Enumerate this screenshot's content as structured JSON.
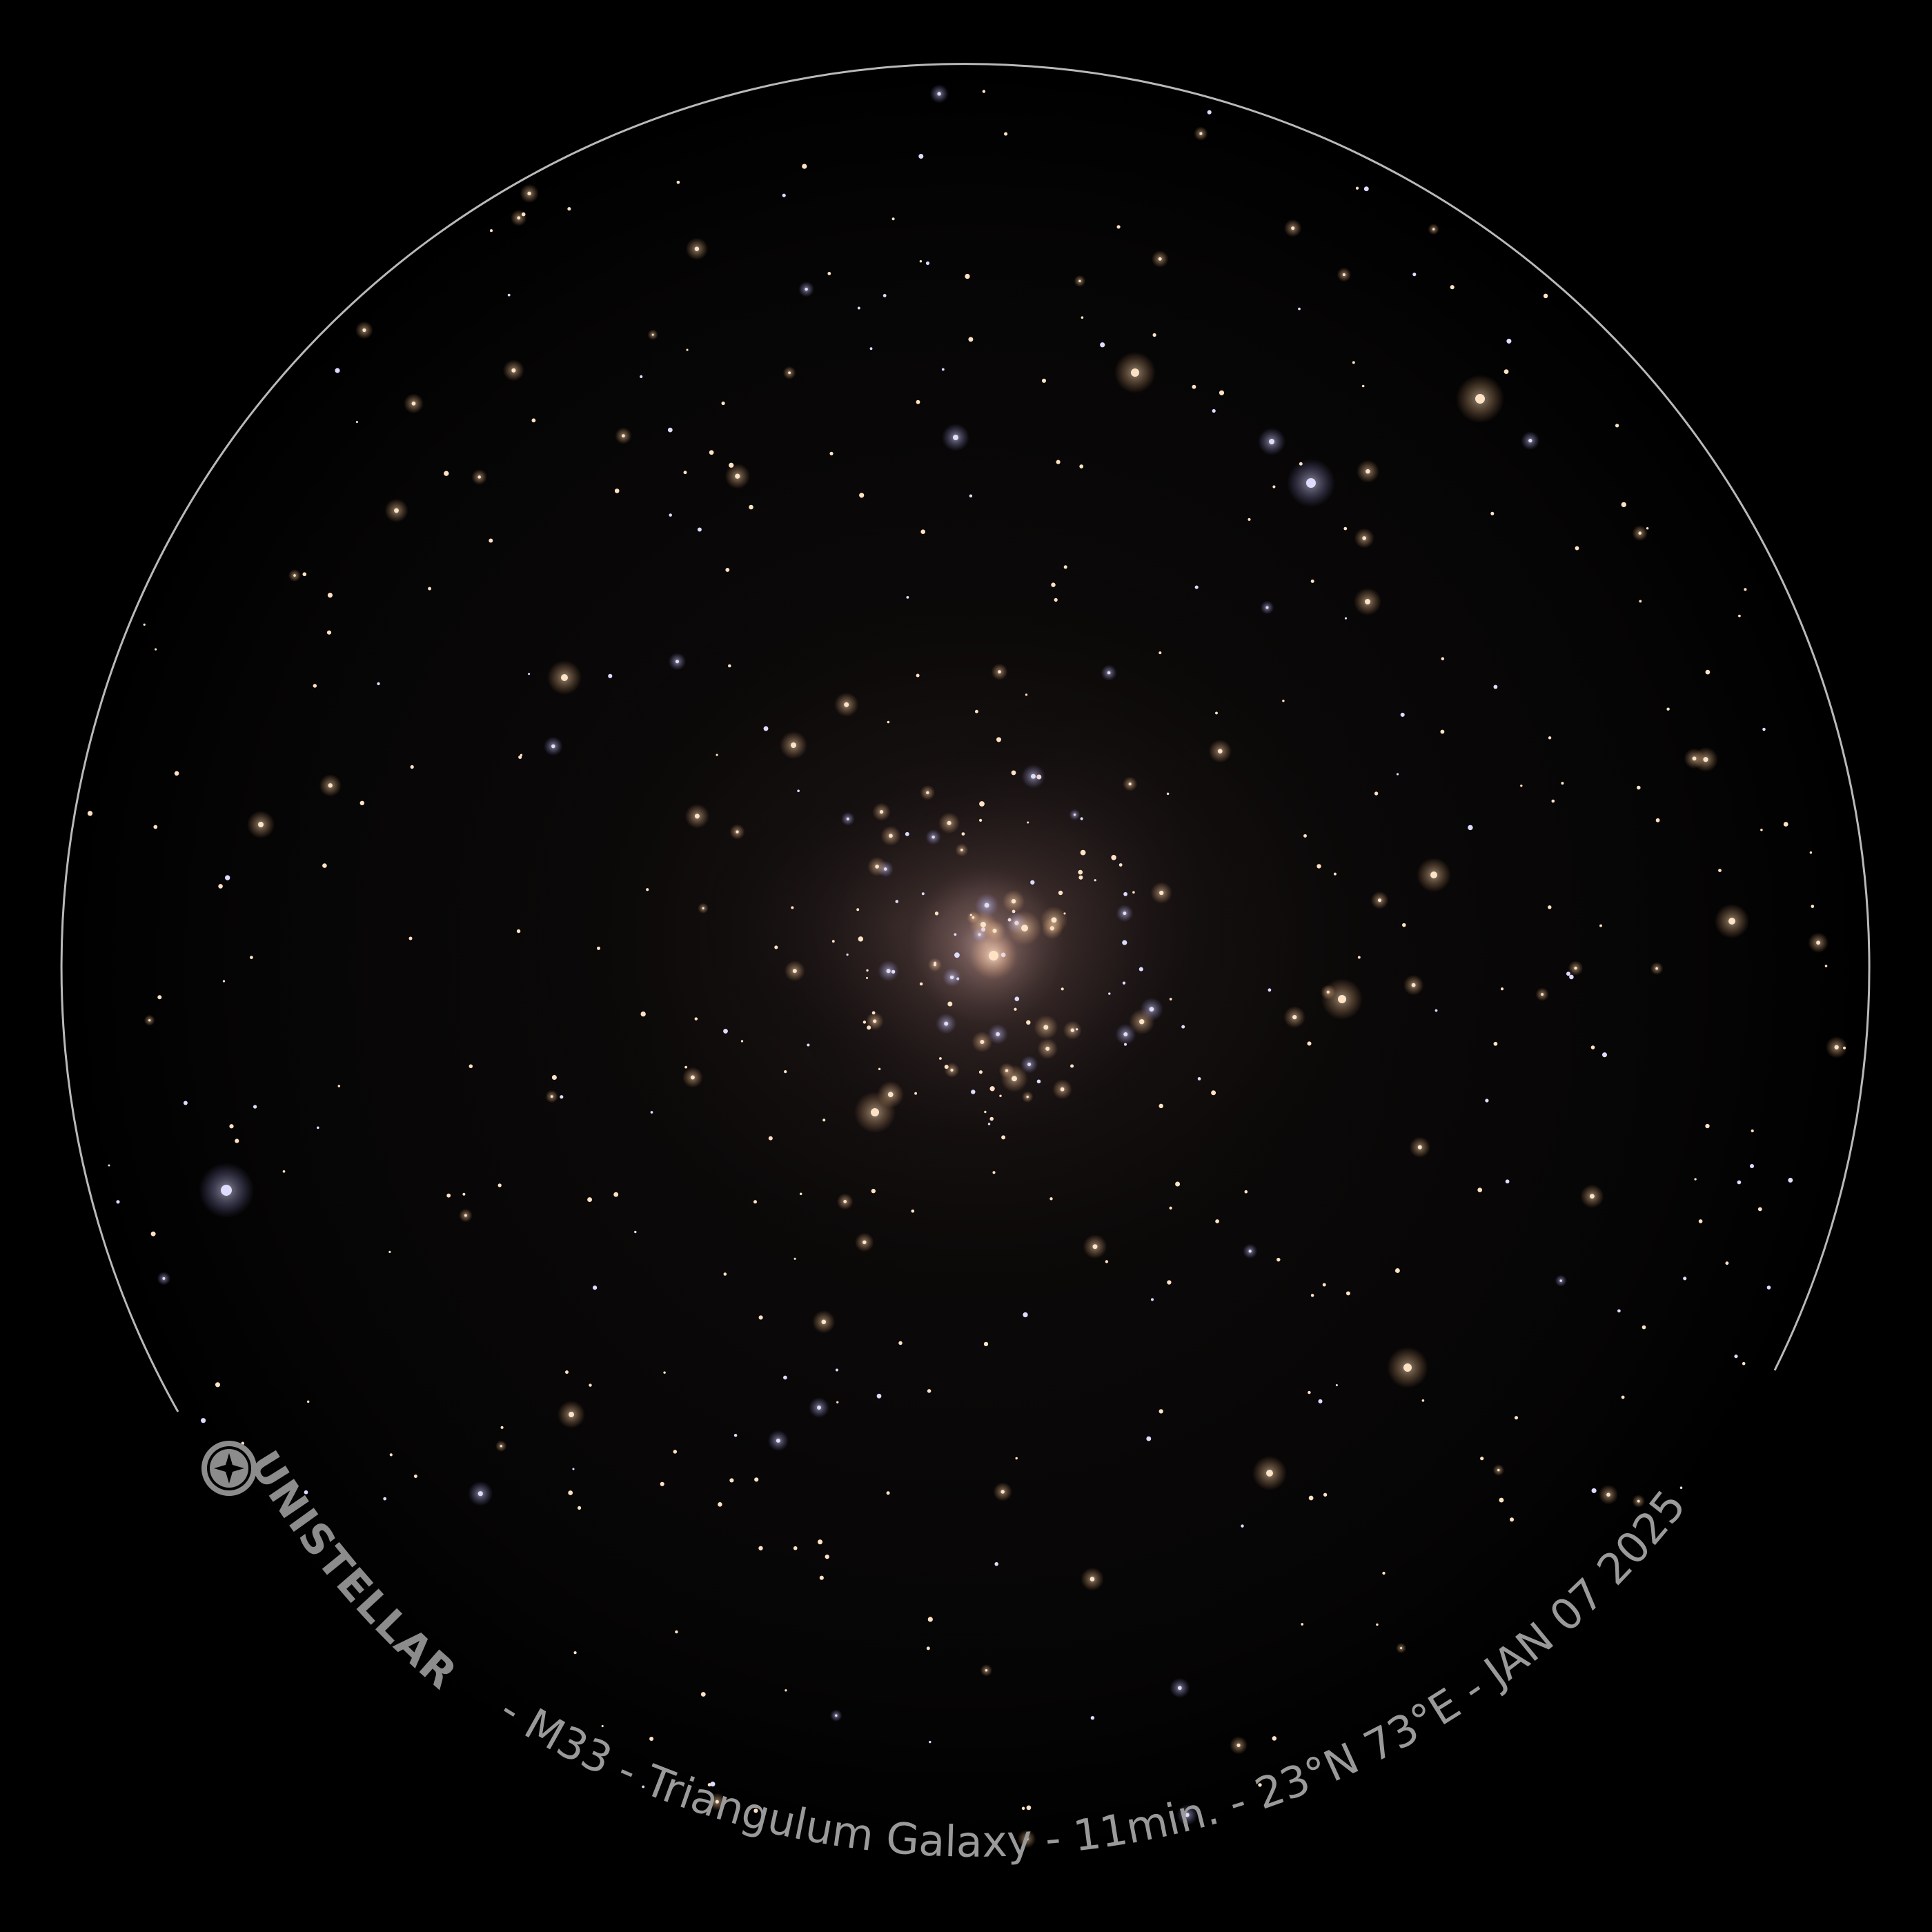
{
  "brand": {
    "name": "UNISTELLAR",
    "logo_icon": "unistellar-star-icon"
  },
  "caption": {
    "text": " - M33 - Triangulum Galaxy - 11min. - 23°N 73°E - JAN 07 2025"
  },
  "colors": {
    "background": "#000000",
    "ring": "#b9b9b9",
    "text": "#9a9a9a",
    "galaxy_core": "#caa9a6",
    "star_warm": "#ffd9b0",
    "star_cool": "#c9c8ff"
  }
}
